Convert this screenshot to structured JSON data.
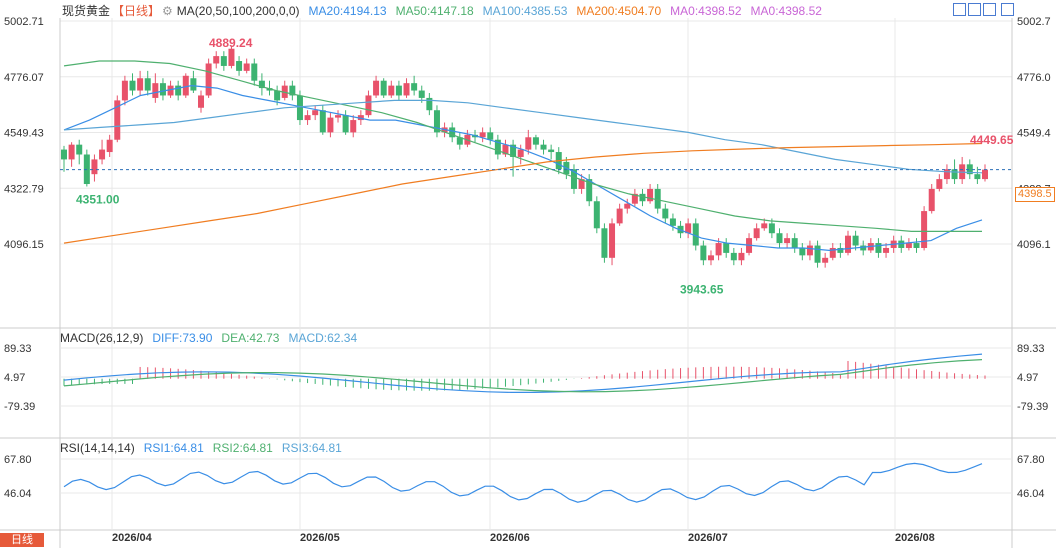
{
  "header": {
    "symbol": "现货黄金",
    "period": "【日线】",
    "settings_icon": "gear-icon",
    "ma_label": "MA(20,50,100,200,0,0)",
    "ma20": "MA20:4194.13",
    "ma50": "MA50:4147.18",
    "ma100": "MA100:4385.53",
    "ma200": "MA200:4504.70",
    "ma0a": "MA0:4398.52",
    "ma0b": "MA0:4398.52"
  },
  "toolbar": {
    "icons": [
      "fit-screen-icon",
      "crosshair-icon",
      "zoom-icon",
      "expand-icon"
    ]
  },
  "colors": {
    "up": "#e8526a",
    "down": "#3cb371",
    "ma20": "#3a8ee6",
    "ma50": "#4fb06f",
    "ma100": "#5aa5d6",
    "ma200": "#f07d21",
    "ma0": "#c966d6",
    "last_line": "#2a6fb8",
    "grid": "#e8e8e8"
  },
  "price_panel": {
    "y_ticks": [
      "5002.71",
      "4776.07",
      "4549.43",
      "4322.79",
      "4096.15"
    ],
    "right_ticks": [
      "5002.7",
      "4776.0",
      "4549.4",
      "4322.7",
      "4096.1"
    ],
    "current_price": "4398.5",
    "annotations": {
      "high": "4889.24",
      "low1": "4351.00",
      "low2": "3943.65",
      "recent_high": "4449.65"
    }
  },
  "macd_panel": {
    "label": "MACD(26,12,9)",
    "diff": "DIFF:73.90",
    "dea": "DEA:42.73",
    "macd": "MACD:62.34",
    "y_ticks": [
      "89.33",
      "4.97",
      "-79.39"
    ]
  },
  "rsi_panel": {
    "label": "RSI(14,14,14)",
    "rsi1": "RSI1:64.81",
    "rsi2": "RSI2:64.81",
    "rsi3": "RSI3:64.81",
    "y_ticks": [
      "67.80",
      "46.04"
    ]
  },
  "x_axis": [
    "2026/04",
    "2026/05",
    "2026/06",
    "2026/07",
    "2026/08"
  ],
  "logo_text": "日线",
  "chart_data": {
    "type": "candlestick",
    "title": "现货黄金",
    "period": "日线",
    "ylim": [
      3943.65,
      5002.71
    ],
    "candles": [
      [
        4480,
        4440,
        4495,
        4390
      ],
      [
        4440,
        4500,
        4510,
        4410
      ],
      [
        4500,
        4460,
        4520,
        4420
      ],
      [
        4460,
        4340,
        4480,
        4330
      ],
      [
        4380,
        4440,
        4460,
        4350
      ],
      [
        4440,
        4480,
        4520,
        4420
      ],
      [
        4470,
        4520,
        4540,
        4450
      ],
      [
        4520,
        4680,
        4700,
        4510
      ],
      [
        4680,
        4760,
        4780,
        4660
      ],
      [
        4760,
        4720,
        4790,
        4700
      ],
      [
        4720,
        4770,
        4800,
        4700
      ],
      [
        4770,
        4720,
        4800,
        4700
      ],
      [
        4690,
        4750,
        4790,
        4670
      ],
      [
        4750,
        4700,
        4770,
        4680
      ],
      [
        4700,
        4740,
        4760,
        4690
      ],
      [
        4740,
        4700,
        4760,
        4680
      ],
      [
        4700,
        4780,
        4790,
        4690
      ],
      [
        4770,
        4720,
        4800,
        4710
      ],
      [
        4650,
        4700,
        4720,
        4630
      ],
      [
        4700,
        4830,
        4850,
        4690
      ],
      [
        4830,
        4860,
        4880,
        4810
      ],
      [
        4860,
        4820,
        4880,
        4800
      ],
      [
        4820,
        4890,
        4900,
        4810
      ],
      [
        4840,
        4800,
        4860,
        4780
      ],
      [
        4800,
        4830,
        4850,
        4790
      ],
      [
        4830,
        4760,
        4850,
        4740
      ],
      [
        4760,
        4730,
        4790,
        4700
      ],
      [
        4730,
        4720,
        4760,
        4700
      ],
      [
        4720,
        4680,
        4740,
        4660
      ],
      [
        4690,
        4740,
        4760,
        4680
      ],
      [
        4740,
        4700,
        4760,
        4680
      ],
      [
        4700,
        4600,
        4720,
        4580
      ],
      [
        4600,
        4620,
        4640,
        4580
      ],
      [
        4620,
        4640,
        4660,
        4600
      ],
      [
        4640,
        4550,
        4660,
        4540
      ],
      [
        4550,
        4610,
        4630,
        4530
      ],
      [
        4610,
        4620,
        4640,
        4590
      ],
      [
        4620,
        4550,
        4640,
        4540
      ],
      [
        4550,
        4600,
        4620,
        4530
      ],
      [
        4600,
        4620,
        4640,
        4580
      ],
      [
        4620,
        4700,
        4720,
        4610
      ],
      [
        4700,
        4760,
        4780,
        4690
      ],
      [
        4760,
        4700,
        4770,
        4690
      ],
      [
        4700,
        4740,
        4760,
        4690
      ],
      [
        4740,
        4700,
        4760,
        4680
      ],
      [
        4700,
        4750,
        4770,
        4690
      ],
      [
        4750,
        4720,
        4780,
        4700
      ],
      [
        4720,
        4690,
        4740,
        4670
      ],
      [
        4690,
        4640,
        4710,
        4620
      ],
      [
        4640,
        4550,
        4660,
        4530
      ],
      [
        4550,
        4570,
        4590,
        4530
      ],
      [
        4570,
        4530,
        4590,
        4510
      ],
      [
        4530,
        4500,
        4550,
        4480
      ],
      [
        4500,
        4540,
        4560,
        4490
      ],
      [
        4540,
        4530,
        4560,
        4510
      ],
      [
        4530,
        4550,
        4570,
        4510
      ],
      [
        4550,
        4520,
        4570,
        4500
      ],
      [
        4520,
        4460,
        4540,
        4440
      ],
      [
        4460,
        4500,
        4520,
        4450
      ],
      [
        4500,
        4450,
        4520,
        4370
      ],
      [
        4450,
        4480,
        4500,
        4420
      ],
      [
        4480,
        4530,
        4560,
        4460
      ],
      [
        4530,
        4500,
        4540,
        4480
      ],
      [
        4500,
        4480,
        4520,
        4460
      ],
      [
        4480,
        4470,
        4500,
        4440
      ],
      [
        4470,
        4400,
        4490,
        4380
      ],
      [
        4430,
        4380,
        4450,
        4360
      ],
      [
        4400,
        4320,
        4420,
        4300
      ],
      [
        4320,
        4360,
        4380,
        4300
      ],
      [
        4360,
        4270,
        4380,
        4250
      ],
      [
        4270,
        4160,
        4290,
        4140
      ],
      [
        4160,
        4040,
        4180,
        4020
      ],
      [
        4040,
        4180,
        4200,
        4010
      ],
      [
        4180,
        4240,
        4260,
        4170
      ],
      [
        4240,
        4260,
        4280,
        4220
      ],
      [
        4260,
        4300,
        4320,
        4250
      ],
      [
        4300,
        4270,
        4320,
        4250
      ],
      [
        4270,
        4320,
        4340,
        4260
      ],
      [
        4320,
        4240,
        4340,
        4220
      ],
      [
        4240,
        4200,
        4260,
        4180
      ],
      [
        4200,
        4170,
        4220,
        4150
      ],
      [
        4170,
        4140,
        4190,
        4120
      ],
      [
        4140,
        4180,
        4200,
        4120
      ],
      [
        4180,
        4090,
        4200,
        4070
      ],
      [
        4090,
        4030,
        4110,
        4010
      ],
      [
        4030,
        4050,
        4070,
        4010
      ],
      [
        4050,
        4100,
        4120,
        4030
      ],
      [
        4100,
        4060,
        4120,
        4040
      ],
      [
        4060,
        4030,
        4080,
        4010
      ],
      [
        4030,
        4060,
        4080,
        4010
      ],
      [
        4060,
        4120,
        4140,
        4050
      ],
      [
        4120,
        4160,
        4180,
        4110
      ],
      [
        4160,
        4180,
        4200,
        4150
      ],
      [
        4180,
        4140,
        4200,
        4120
      ],
      [
        4140,
        4100,
        4160,
        4080
      ],
      [
        4100,
        4120,
        4140,
        4080
      ],
      [
        4120,
        4080,
        4140,
        4060
      ],
      [
        4080,
        4050,
        4100,
        4030
      ],
      [
        4050,
        4090,
        4110,
        4030
      ],
      [
        4090,
        4020,
        4110,
        4000
      ],
      [
        4020,
        4040,
        4060,
        4000
      ],
      [
        4040,
        4080,
        4100,
        4030
      ],
      [
        4080,
        4060,
        4100,
        4040
      ],
      [
        4060,
        4130,
        4150,
        4050
      ],
      [
        4130,
        4090,
        4150,
        4070
      ],
      [
        4090,
        4070,
        4110,
        4050
      ],
      [
        4070,
        4100,
        4120,
        4060
      ],
      [
        4100,
        4060,
        4120,
        4040
      ],
      [
        4060,
        4080,
        4100,
        4040
      ],
      [
        4080,
        4110,
        4130,
        4060
      ],
      [
        4110,
        4080,
        4130,
        4060
      ],
      [
        4080,
        4100,
        4120,
        4070
      ],
      [
        4100,
        4080,
        4120,
        4060
      ],
      [
        4080,
        4230,
        4250,
        4070
      ],
      [
        4230,
        4320,
        4340,
        4220
      ],
      [
        4320,
        4360,
        4380,
        4310
      ],
      [
        4360,
        4400,
        4420,
        4340
      ],
      [
        4400,
        4360,
        4440,
        4340
      ],
      [
        4360,
        4420,
        4450,
        4340
      ],
      [
        4420,
        4380,
        4440,
        4360
      ],
      [
        4380,
        4360,
        4410,
        4340
      ],
      [
        4360,
        4398.52,
        4420,
        4350
      ]
    ],
    "ma20": [
      4560,
      4600,
      4650,
      4700,
      4720,
      4740,
      4730,
      4700,
      4680,
      4660,
      4640,
      4620,
      4600,
      4600,
      4580,
      4560,
      4540,
      4510,
      4480,
      4440,
      4390,
      4330,
      4270,
      4210,
      4160,
      4120,
      4100,
      4090,
      4080,
      4080,
      4070,
      4080,
      4090,
      4100,
      4110,
      4160,
      4194.13
    ],
    "ma50": [
      4820,
      4840,
      4840,
      4830,
      4800,
      4760,
      4720,
      4690,
      4660,
      4630,
      4590,
      4540,
      4490,
      4440,
      4390,
      4340,
      4300,
      4270,
      4240,
      4210,
      4190,
      4180,
      4170,
      4160,
      4147.18,
      4147.18,
      4147.18
    ],
    "ma100": [
      4560,
      4570,
      4580,
      4590,
      4610,
      4630,
      4650,
      4660,
      4670,
      4680,
      4680,
      4670,
      4650,
      4630,
      4610,
      4590,
      4570,
      4550,
      4520,
      4500,
      4470,
      4440,
      4420,
      4400,
      4390,
      4385.53
    ],
    "ma200": [
      4100,
      4130,
      4160,
      4190,
      4220,
      4260,
      4300,
      4340,
      4370,
      4400,
      4430,
      4450,
      4465,
      4475,
      4482,
      4488,
      4492,
      4496,
      4500,
      4504.7
    ],
    "macd": {
      "diff": 73.9,
      "dea": 42.73,
      "macd": 62.34,
      "ylim": [
        -79.39,
        89.33
      ]
    },
    "rsi": {
      "rsi1": 64.81,
      "rsi2": 64.81,
      "rsi3": 64.81,
      "ylim": [
        46.04,
        67.8
      ]
    },
    "x_ticks": [
      "2026/04",
      "2026/05",
      "2026/06",
      "2026/07",
      "2026/08"
    ]
  }
}
